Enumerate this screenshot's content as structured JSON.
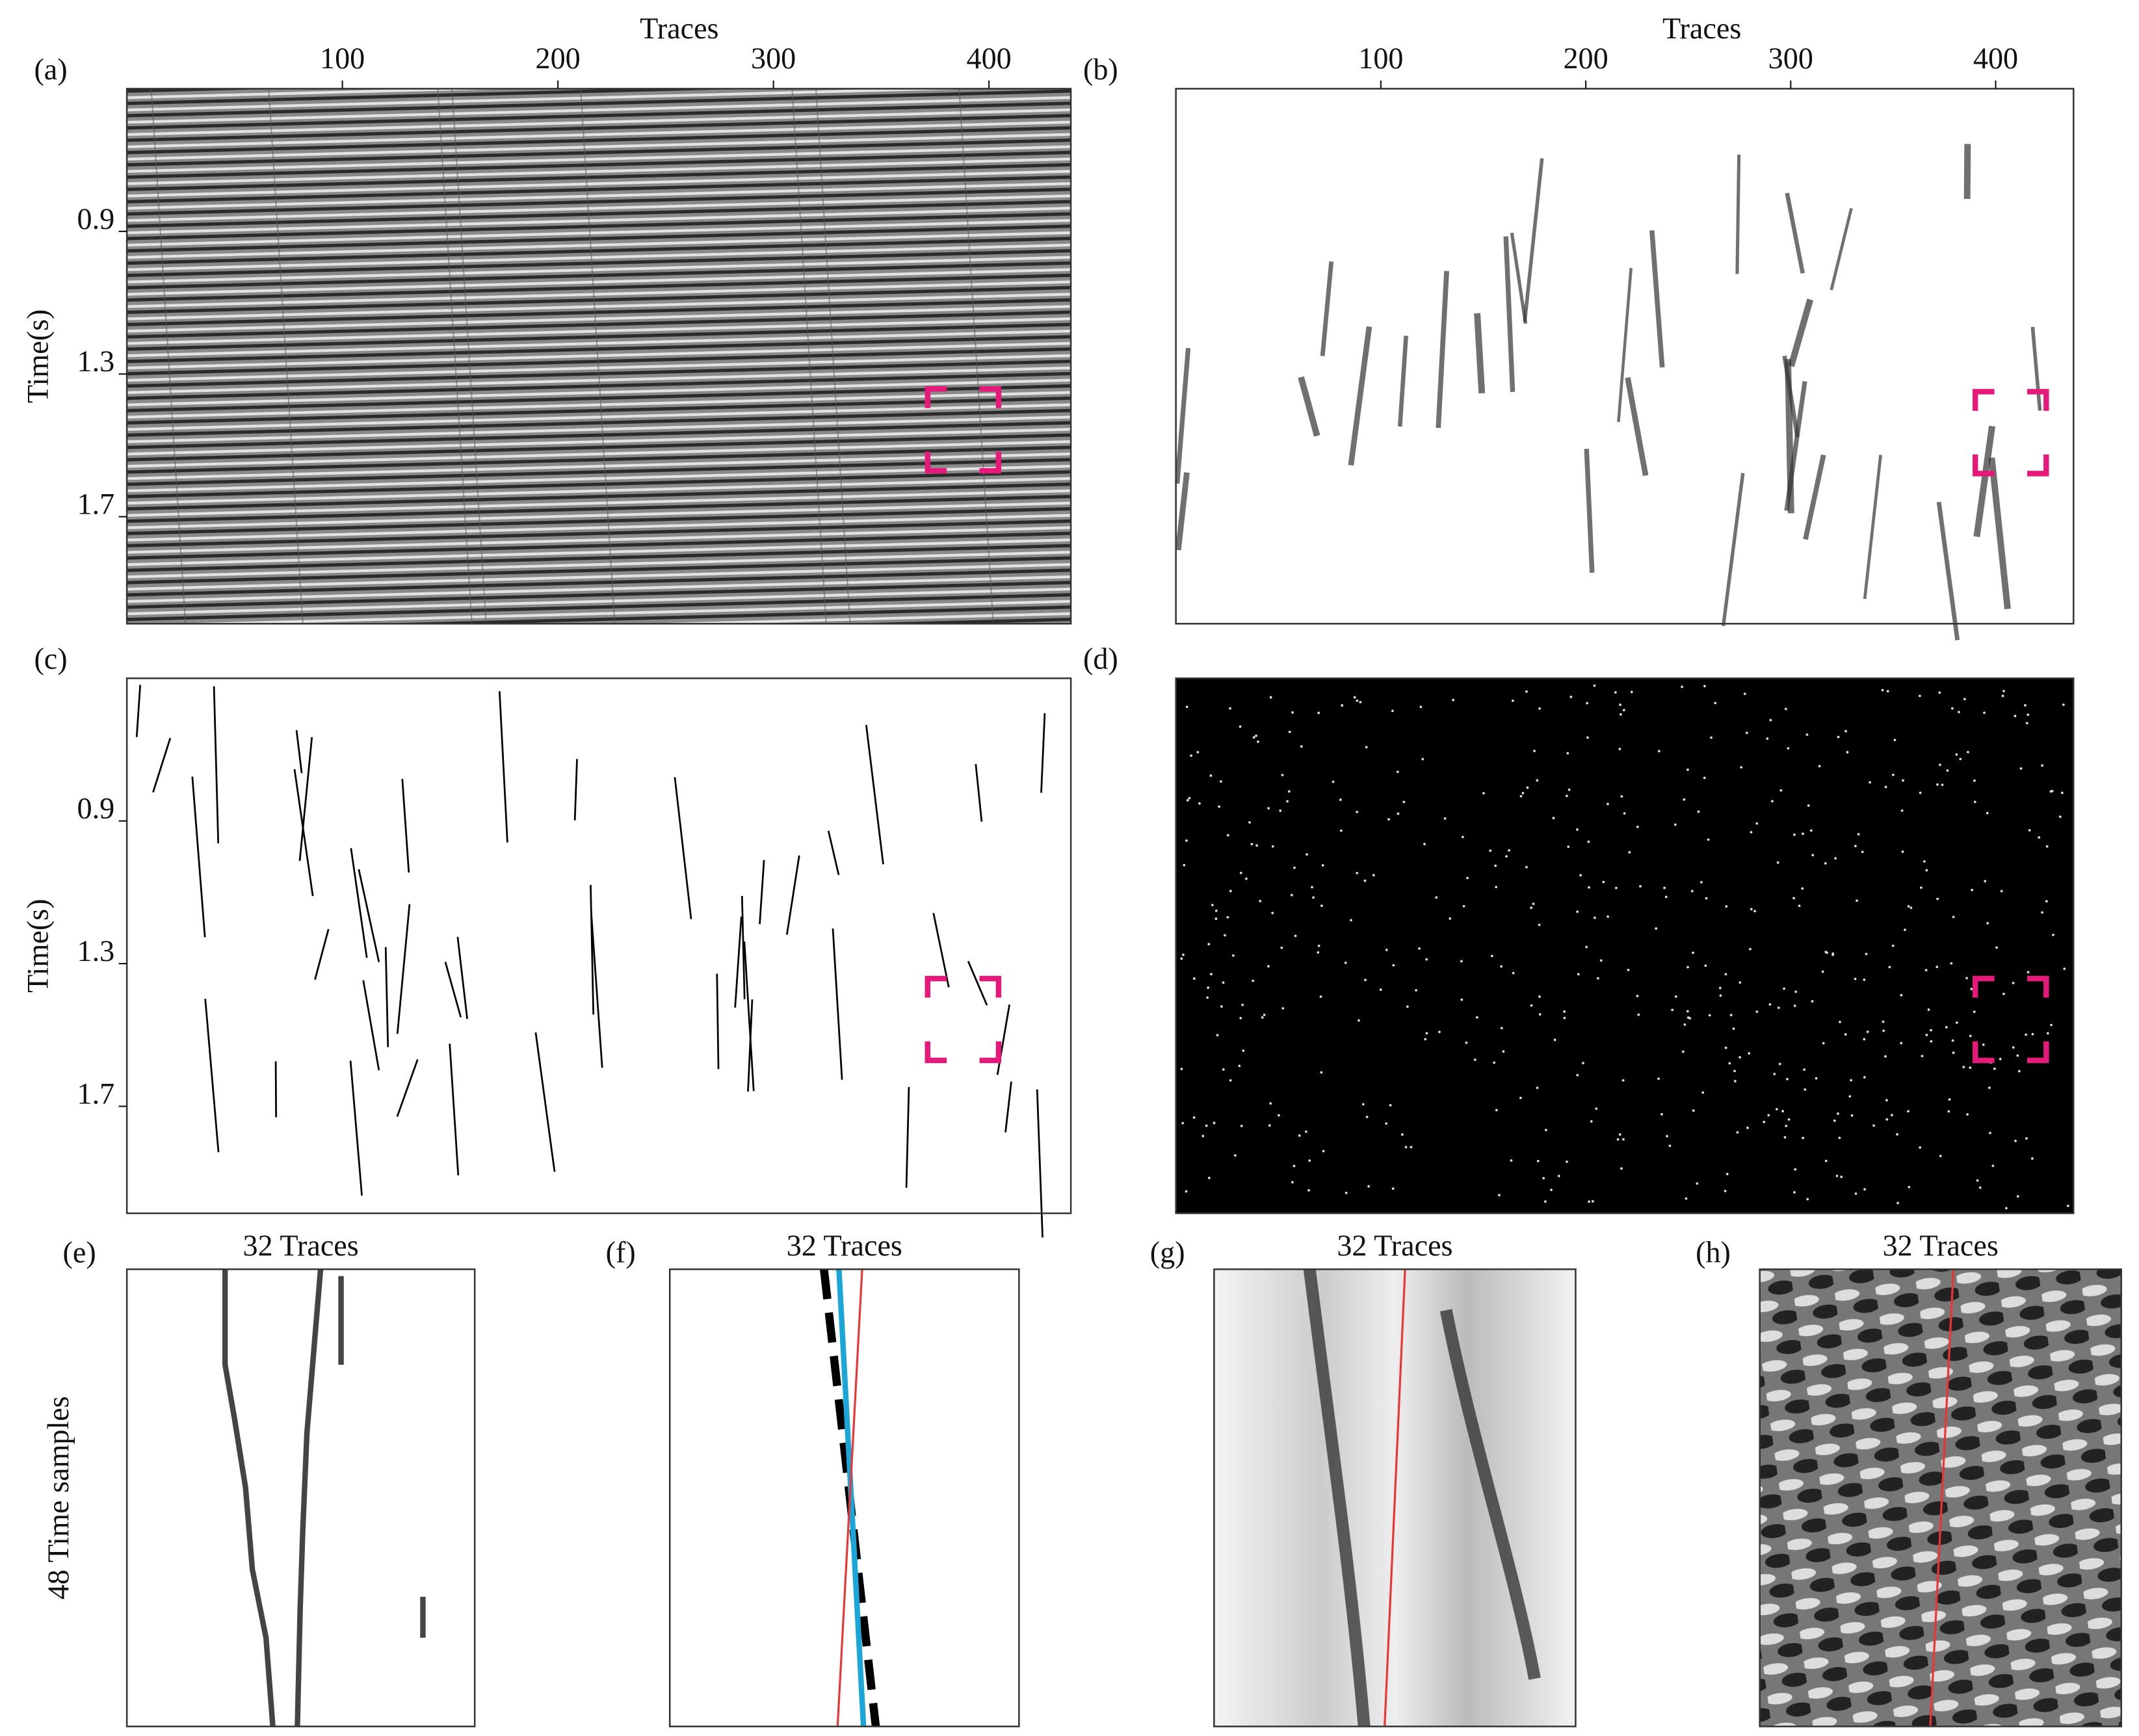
{
  "panels": [
    {
      "label": "(a)",
      "x_axis_title": "Traces",
      "xlim": [
        0,
        438
      ],
      "xticks": [
        100,
        200,
        300,
        400
      ],
      "y_axis_title": "Time(s)",
      "ylim": [
        0.5,
        2.0
      ],
      "yticks": [
        0.9,
        1.3,
        1.7
      ]
    },
    {
      "label": "(b)",
      "x_axis_title": "Traces",
      "xlim": [
        0,
        438
      ],
      "xticks": [
        100,
        200,
        300,
        400
      ]
    },
    {
      "label": "(c)",
      "y_axis_title": "Time(s)",
      "ylim": [
        0.5,
        2.0
      ],
      "yticks": [
        0.9,
        1.3,
        1.7
      ]
    },
    {
      "label": "(d)"
    },
    {
      "label": "(e)",
      "title": "32 Traces",
      "y_axis_title": "48 Time samples"
    },
    {
      "label": "(f)",
      "title": "32 Traces"
    },
    {
      "label": "(g)",
      "title": "32 Traces"
    },
    {
      "label": "(h)",
      "title": "32 Traces"
    }
  ]
}
